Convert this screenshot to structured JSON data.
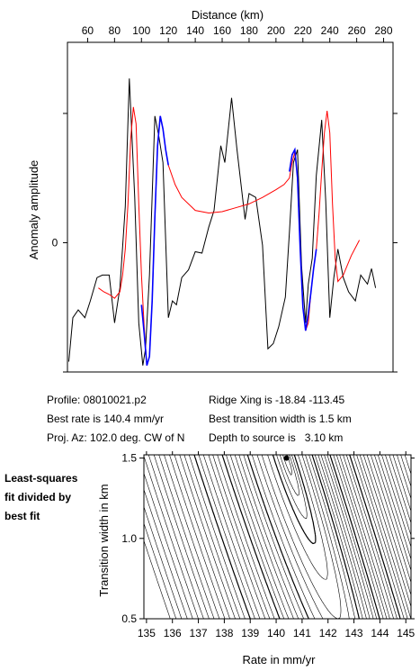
{
  "info": {
    "profile": "Profile: 08010021.p2",
    "best_rate": "Best rate is 140.4 mm/yr",
    "proj_az": "Proj. Az: 102.0 deg. CW of N",
    "ridge_xing": "Ridge Xing is -18.84 -113.45",
    "best_width": "Best transition width is 1.5 km",
    "depth": "Depth to source is   3.10 km"
  },
  "side_note": [
    "Least-squares",
    "fit divided by",
    "best fit"
  ],
  "colors": {
    "observed": "#000000",
    "model": "#ff0000",
    "fit_segment": "#0000ff",
    "contour": "#000000",
    "best_marker": "#000000"
  },
  "chart_data": [
    {
      "type": "line",
      "xlabel": "Distance (km)",
      "ylabel": "Anomaly amplitude",
      "xlim": [
        45,
        287
      ],
      "ylim": [
        -1.0,
        1.55
      ],
      "x_ticks": [
        60,
        80,
        100,
        120,
        140,
        160,
        180,
        200,
        220,
        240,
        260,
        280
      ],
      "y_tick_labels": [
        {
          "value": 0,
          "label": "0"
        }
      ],
      "y_tick_marks": [
        -1,
        0,
        1
      ],
      "series": [
        {
          "role": "observed",
          "x": [
            46,
            49,
            53,
            58,
            62,
            67,
            71,
            76,
            80,
            84,
            88,
            91,
            95,
            98,
            101,
            103,
            106,
            110,
            113,
            116,
            120,
            123,
            126,
            130,
            135,
            140,
            145,
            150,
            154,
            159,
            162,
            167,
            171,
            177,
            180,
            185,
            190,
            194,
            198,
            202,
            207,
            210,
            213,
            216,
            219,
            222,
            224,
            227,
            230,
            234,
            237,
            240,
            243,
            246,
            250,
            254,
            259,
            263,
            268,
            271,
            274
          ],
          "y": [
            -0.92,
            -0.58,
            -0.52,
            -0.58,
            -0.45,
            -0.27,
            -0.25,
            -0.25,
            -0.62,
            -0.35,
            0.28,
            1.27,
            0.35,
            -0.62,
            -0.95,
            -0.82,
            -0.25,
            0.98,
            0.82,
            0.62,
            -0.58,
            -0.45,
            -0.48,
            -0.27,
            -0.21,
            -0.07,
            -0.08,
            0.12,
            0.25,
            0.75,
            0.62,
            1.12,
            0.72,
            0.18,
            0.38,
            0.35,
            -0.02,
            -0.82,
            -0.78,
            -0.65,
            -0.42,
            0.08,
            0.62,
            0.72,
            -0.18,
            -0.62,
            -0.32,
            -0.12,
            0.52,
            0.95,
            0.32,
            -0.58,
            -0.27,
            -0.05,
            -0.27,
            -0.38,
            -0.45,
            -0.25,
            -0.32,
            -0.2,
            -0.35
          ]
        },
        {
          "role": "model",
          "x": [
            68,
            72,
            76,
            80,
            84,
            86,
            88,
            90,
            92,
            94,
            96,
            98,
            100,
            102,
            104,
            106,
            108,
            110,
            112,
            114,
            116,
            118,
            120,
            125,
            130,
            140,
            150,
            160,
            170,
            180,
            190,
            200,
            206,
            210,
            212,
            214,
            216,
            218,
            220,
            222,
            224,
            226,
            228,
            230,
            232,
            234,
            236,
            238,
            240,
            242,
            244,
            246,
            250,
            256,
            262
          ],
          "y": [
            -0.35,
            -0.38,
            -0.4,
            -0.43,
            -0.38,
            -0.25,
            -0.05,
            0.3,
            0.8,
            1.05,
            0.92,
            0.3,
            -0.25,
            -0.65,
            -0.95,
            -0.88,
            -0.45,
            0.2,
            0.75,
            0.98,
            0.88,
            0.72,
            0.6,
            0.45,
            0.35,
            0.25,
            0.23,
            0.24,
            0.27,
            0.3,
            0.35,
            0.41,
            0.45,
            0.5,
            0.62,
            0.7,
            0.5,
            -0.05,
            -0.5,
            -0.68,
            -0.62,
            -0.38,
            -0.2,
            -0.05,
            0.22,
            0.55,
            0.85,
            1.02,
            0.85,
            0.3,
            -0.12,
            -0.3,
            -0.25,
            -0.1,
            0.02
          ]
        },
        {
          "role": "fit_segment",
          "x": [
            100,
            102,
            104,
            106,
            108,
            110,
            112,
            114,
            116,
            118,
            120
          ],
          "y": [
            -0.48,
            -0.7,
            -0.95,
            -0.88,
            -0.45,
            0.2,
            0.75,
            0.98,
            0.88,
            0.72,
            0.6
          ]
        },
        {
          "role": "fit_segment",
          "x": [
            210,
            212,
            214,
            216,
            218,
            220,
            222,
            224,
            226,
            228,
            230
          ],
          "y": [
            0.55,
            0.68,
            0.72,
            0.5,
            -0.05,
            -0.5,
            -0.68,
            -0.55,
            -0.38,
            -0.2,
            -0.05
          ]
        }
      ]
    },
    {
      "type": "contour",
      "xlabel": "Rate in mm/yr",
      "ylabel": "Transition width in km",
      "xlim": [
        134.9,
        145.2
      ],
      "ylim": [
        0.5,
        1.52
      ],
      "x_ticks": [
        135,
        136,
        137,
        138,
        139,
        140,
        141,
        142,
        143,
        144,
        145
      ],
      "y_ticks": [
        0.5,
        1.0,
        1.5
      ],
      "best_fit": {
        "rate": 140.4,
        "width": 1.5
      },
      "contour_levels": [
        1.005,
        1.02,
        1.05,
        1.1,
        1.2,
        1.35,
        1.5,
        1.7,
        1.9,
        2.1,
        2.35,
        2.6,
        2.9,
        3.2,
        3.5,
        3.9,
        4.3,
        4.7,
        5.2,
        5.7,
        6.2,
        6.8,
        7.4,
        8.0,
        8.7,
        9.4,
        10.2,
        11.0,
        11.8,
        12.7,
        13.6,
        14.6,
        15.6,
        16.7,
        17.8,
        19.0
      ]
    }
  ]
}
